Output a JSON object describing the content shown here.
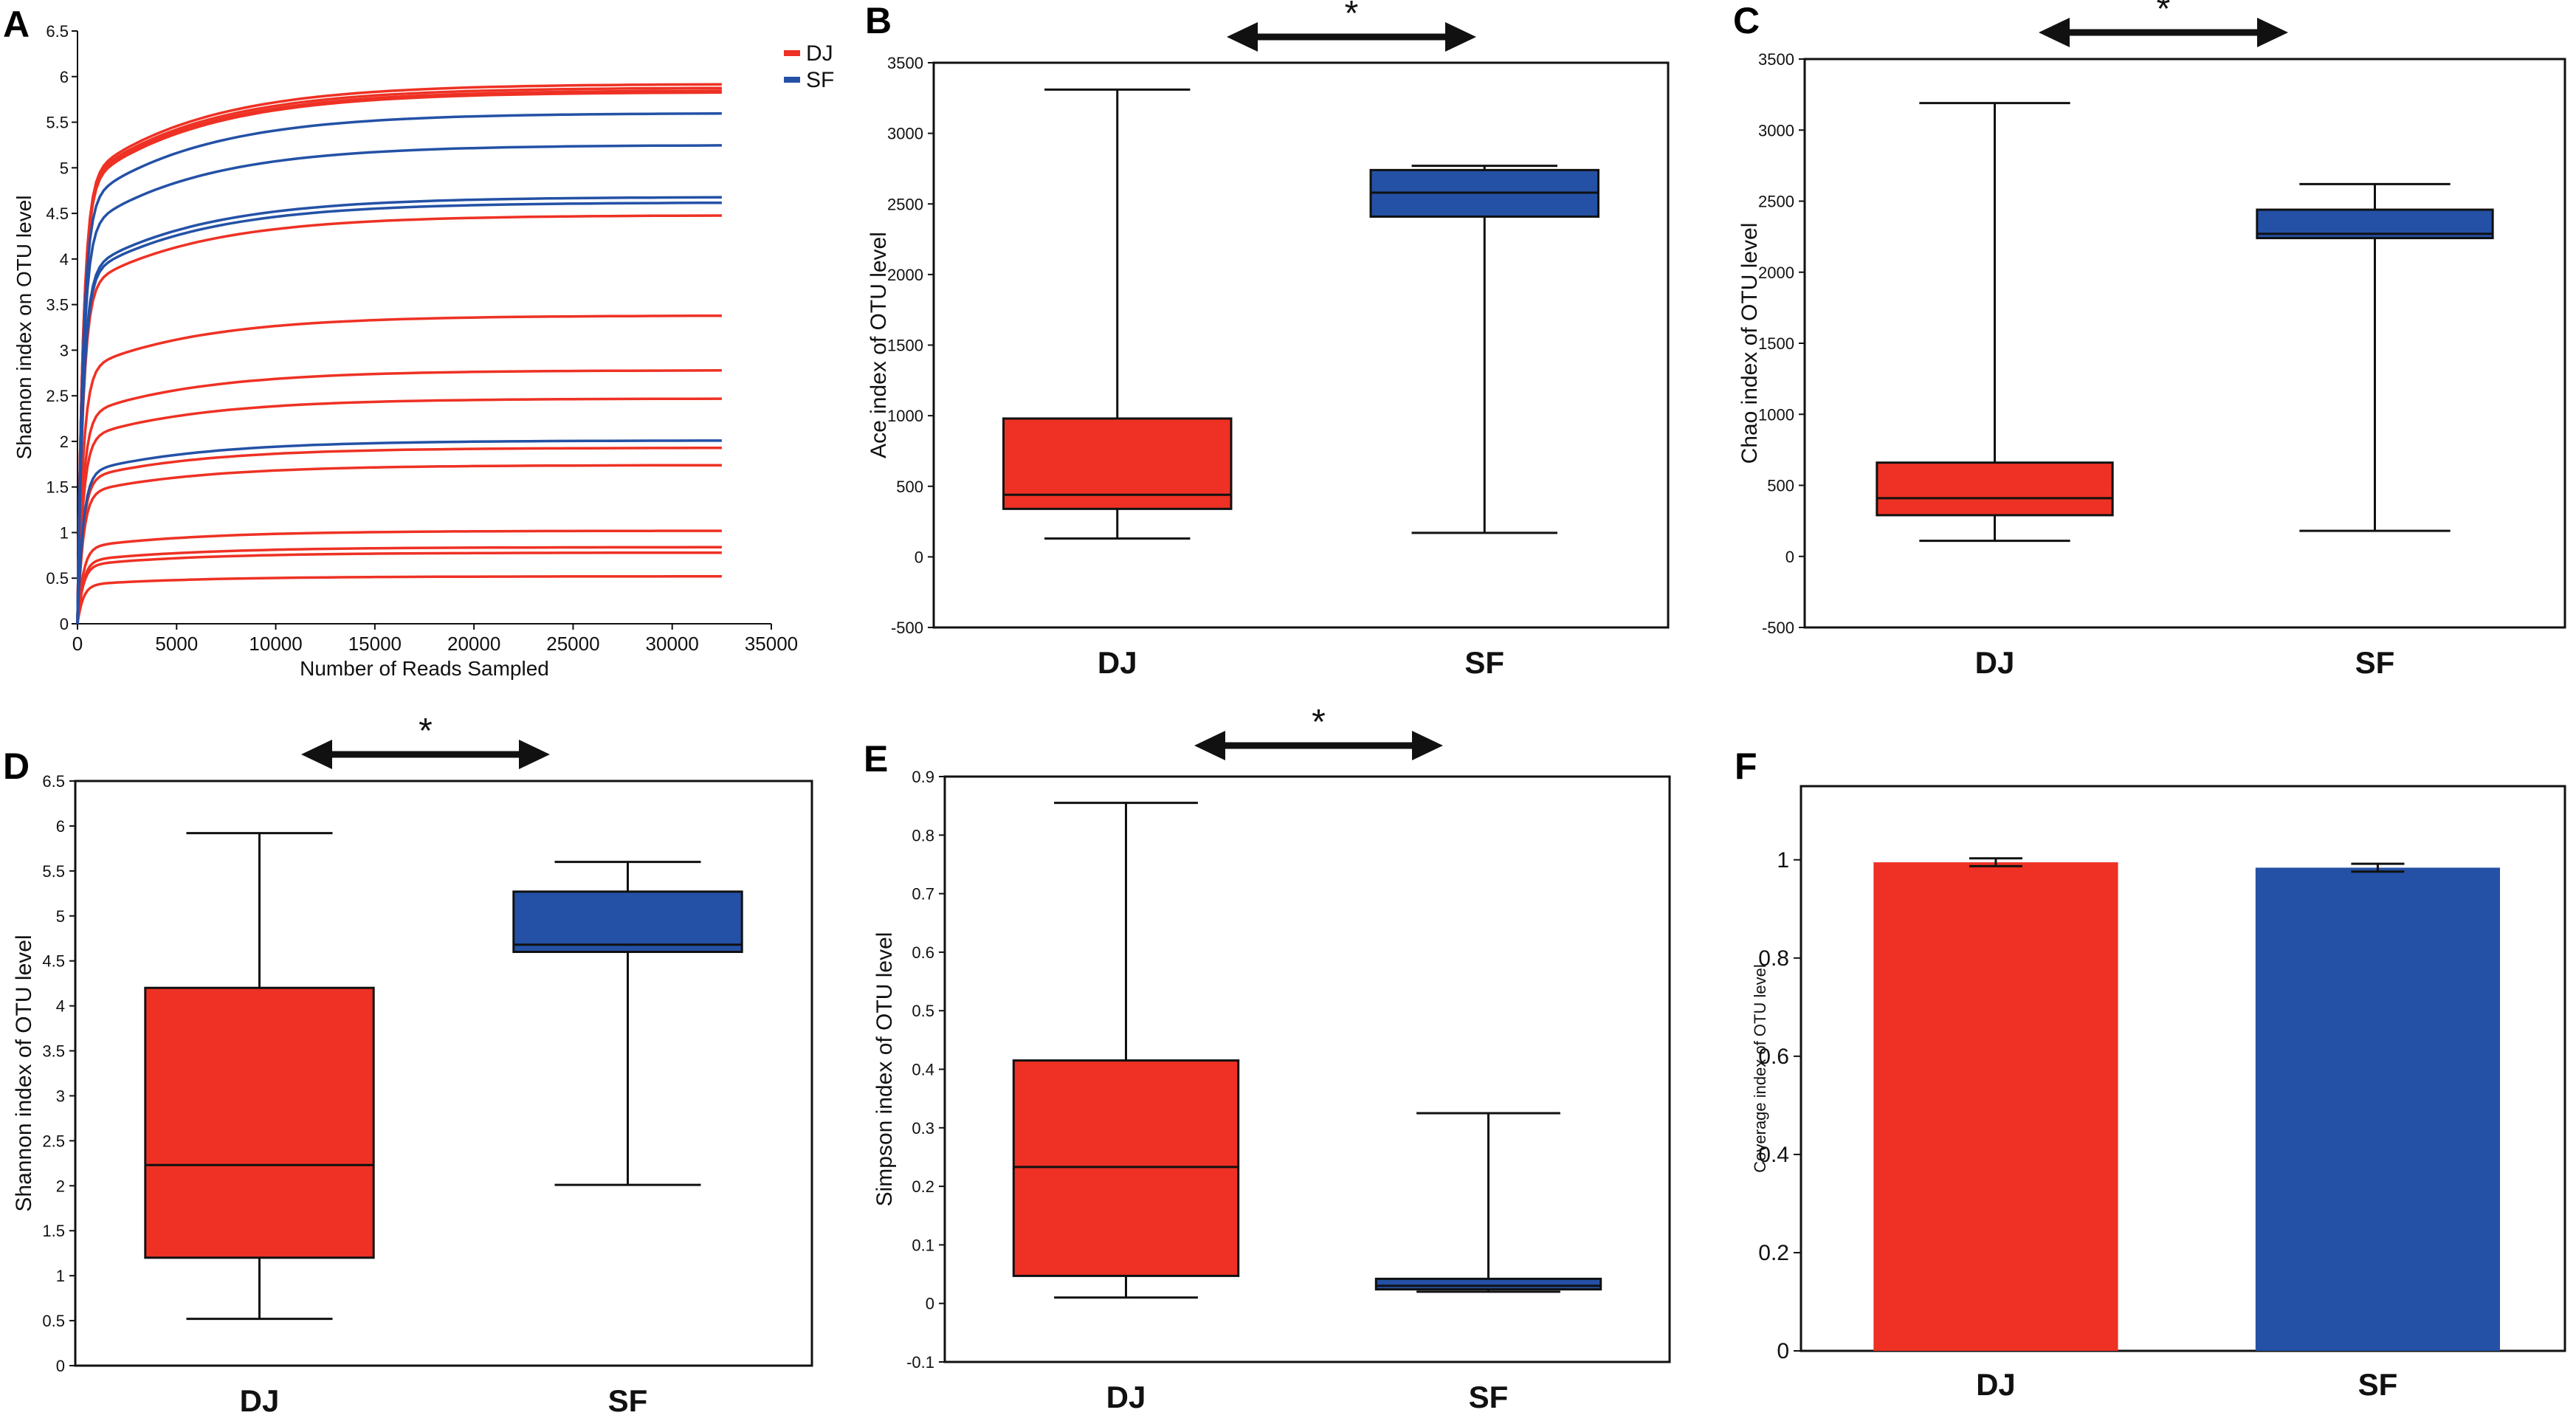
{
  "chart_data": [
    {
      "panel": "A",
      "type": "line",
      "xlabel": "Number of Reads Sampled",
      "ylabel": "Shannon index on OTU level",
      "xlim": [
        0,
        35000
      ],
      "ylim": [
        0,
        6.5
      ],
      "xticks": [
        "0",
        "5000",
        "10000",
        "15000",
        "20000",
        "25000",
        "30000",
        "35000"
      ],
      "yticks": [
        "0",
        "0.5",
        "1",
        "1.5",
        "2",
        "2.5",
        "3",
        "3.5",
        "4",
        "4.5",
        "5",
        "5.5",
        "6",
        "6.5"
      ],
      "legend": [
        {
          "name": "DJ",
          "color": "#ee3124"
        },
        {
          "name": "SF",
          "color": "#2451a6"
        }
      ],
      "series": [
        {
          "group": "DJ",
          "color": "#ee3124",
          "final": 5.92
        },
        {
          "group": "DJ",
          "color": "#ee3124",
          "final": 5.88
        },
        {
          "group": "DJ",
          "color": "#ee3124",
          "final": 5.85
        },
        {
          "group": "DJ",
          "color": "#ee3124",
          "final": 5.83
        },
        {
          "group": "DJ",
          "color": "#ee3124",
          "final": 4.48
        },
        {
          "group": "DJ",
          "color": "#ee3124",
          "final": 3.38
        },
        {
          "group": "DJ",
          "color": "#ee3124",
          "final": 2.78
        },
        {
          "group": "DJ",
          "color": "#ee3124",
          "final": 2.47
        },
        {
          "group": "DJ",
          "color": "#ee3124",
          "final": 1.93
        },
        {
          "group": "DJ",
          "color": "#ee3124",
          "final": 1.74
        },
        {
          "group": "DJ",
          "color": "#ee3124",
          "final": 1.02
        },
        {
          "group": "DJ",
          "color": "#ee3124",
          "final": 0.84
        },
        {
          "group": "DJ",
          "color": "#ee3124",
          "final": 0.78
        },
        {
          "group": "DJ",
          "color": "#ee3124",
          "final": 0.52
        },
        {
          "group": "SF",
          "color": "#2451a6",
          "final": 5.6
        },
        {
          "group": "SF",
          "color": "#2451a6",
          "final": 5.25
        },
        {
          "group": "SF",
          "color": "#2451a6",
          "final": 4.68
        },
        {
          "group": "SF",
          "color": "#2451a6",
          "final": 4.62
        },
        {
          "group": "SF",
          "color": "#2451a6",
          "final": 2.01
        }
      ],
      "x_end": 32500
    },
    {
      "panel": "B",
      "type": "box",
      "ylabel": "Ace index of OTU level",
      "ylim": [
        -500,
        3500
      ],
      "yticks": [
        "-500",
        "0",
        "500",
        "1000",
        "1500",
        "2000",
        "2500",
        "3000",
        "3500"
      ],
      "significance": "*",
      "categories": [
        "DJ",
        "SF"
      ],
      "boxes": [
        {
          "name": "DJ",
          "color": "#ee3124",
          "min": 130,
          "q1": 340,
          "median": 440,
          "q3": 980,
          "max": 3310
        },
        {
          "name": "SF",
          "color": "#2451a6",
          "min": 170,
          "q1": 2410,
          "median": 2580,
          "q3": 2740,
          "max": 2770
        }
      ]
    },
    {
      "panel": "C",
      "type": "box",
      "ylabel": "Chao index of OTU level",
      "ylim": [
        -500,
        3500
      ],
      "yticks": [
        "-500",
        "0",
        "500",
        "1000",
        "1500",
        "2000",
        "2500",
        "3000",
        "3500"
      ],
      "significance": "*",
      "categories": [
        "DJ",
        "SF"
      ],
      "boxes": [
        {
          "name": "DJ",
          "color": "#ee3124",
          "min": 110,
          "q1": 290,
          "median": 410,
          "q3": 660,
          "max": 3190
        },
        {
          "name": "SF",
          "color": "#2451a6",
          "min": 180,
          "q1": 2240,
          "median": 2270,
          "q3": 2440,
          "max": 2620
        }
      ]
    },
    {
      "panel": "D",
      "type": "box",
      "ylabel": "Shannon index of OTU level",
      "ylim": [
        0,
        6.5
      ],
      "yticks": [
        "0",
        "0.5",
        "1",
        "1.5",
        "2",
        "2.5",
        "3",
        "3.5",
        "4",
        "4.5",
        "5",
        "5.5",
        "6",
        "6.5"
      ],
      "significance": "*",
      "categories": [
        "DJ",
        "SF"
      ],
      "boxes": [
        {
          "name": "DJ",
          "color": "#ee3124",
          "min": 0.52,
          "q1": 1.2,
          "median": 2.23,
          "q3": 4.2,
          "max": 5.92
        },
        {
          "name": "SF",
          "color": "#2451a6",
          "min": 2.01,
          "q1": 4.6,
          "median": 4.68,
          "q3": 5.27,
          "max": 5.6
        }
      ]
    },
    {
      "panel": "E",
      "type": "box",
      "ylabel": "Simpson index of OTU level",
      "ylim": [
        -0.1,
        0.9
      ],
      "yticks": [
        "-0.1",
        "0",
        "0.1",
        "0.2",
        "0.3",
        "0.4",
        "0.5",
        "0.6",
        "0.7",
        "0.8",
        "0.9"
      ],
      "significance": "*",
      "categories": [
        "DJ",
        "SF"
      ],
      "boxes": [
        {
          "name": "DJ",
          "color": "#ee3124",
          "min": 0.01,
          "q1": 0.047,
          "median": 0.233,
          "q3": 0.415,
          "max": 0.855
        },
        {
          "name": "SF",
          "color": "#2451a6",
          "min": 0.02,
          "q1": 0.024,
          "median": 0.03,
          "q3": 0.042,
          "max": 0.325
        }
      ]
    },
    {
      "panel": "F",
      "type": "bar",
      "ylabel": "Coverage index of OTU level",
      "ylim": [
        0,
        1.15
      ],
      "yticks": [
        "0",
        "0.2",
        "0.4",
        "0.6",
        "0.8",
        "1"
      ],
      "categories": [
        "DJ",
        "SF"
      ],
      "bars": [
        {
          "name": "DJ",
          "color": "#ee3124",
          "value": 0.995,
          "err": 0.008
        },
        {
          "name": "SF",
          "color": "#2451a6",
          "value": 0.984,
          "err": 0.008
        }
      ]
    }
  ]
}
